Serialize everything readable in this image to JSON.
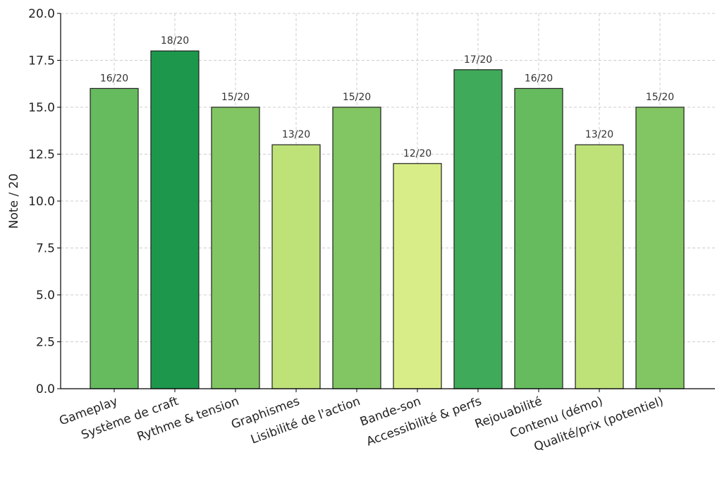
{
  "chart_data": {
    "type": "bar",
    "title": "",
    "xlabel": "",
    "ylabel": "Note / 20",
    "ylim": [
      0,
      20
    ],
    "yticks": [
      "0.0",
      "2.5",
      "5.0",
      "7.5",
      "10.0",
      "12.5",
      "15.0",
      "17.5",
      "20.0"
    ],
    "ytick_values": [
      0,
      2.5,
      5,
      7.5,
      10,
      12.5,
      15,
      17.5,
      20
    ],
    "grid": true,
    "categories": [
      "Gameplay",
      "Système de craft",
      "Rythme & tension",
      "Graphismes",
      "Lisibilité de l'action",
      "Bande-son",
      "Accessibilité & perfs",
      "Rejouabilité",
      "Contenu (démo)",
      "Qualité/prix (potentiel)"
    ],
    "values": [
      16,
      18,
      15,
      13,
      15,
      12,
      17,
      16,
      13,
      15
    ],
    "data_labels": [
      "16/20",
      "18/20",
      "15/20",
      "13/20",
      "15/20",
      "12/20",
      "17/20",
      "16/20",
      "13/20",
      "15/20"
    ],
    "colors": [
      "#66bb5f",
      "#1d974c",
      "#82c663",
      "#bfe278",
      "#82c663",
      "#d8ed88",
      "#3faa59",
      "#66bb5f",
      "#bfe278",
      "#82c663"
    ]
  }
}
